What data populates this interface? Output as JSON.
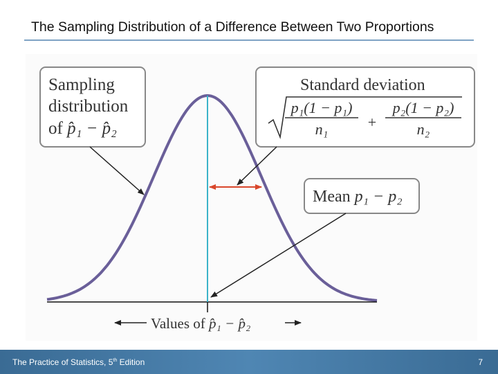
{
  "header": {
    "title": "The Sampling Distribution of a Difference Between Two Proportions"
  },
  "diagram": {
    "sampling_box": {
      "lines": [
        "Sampling",
        "distribution",
        "of"
      ],
      "expression": "p̂₁ − p̂₂"
    },
    "sd_box": {
      "title": "Standard deviation",
      "numerator_1": "p₁(1 − p₁)",
      "denominator_1": "n₁",
      "operator": "+",
      "numerator_2": "p₂(1 − p₂)",
      "denominator_2": "n₂"
    },
    "mean_box": {
      "label": "Mean",
      "expression": "p₁ − p₂"
    },
    "axis_label": {
      "label": "Values",
      "of": "of",
      "expression": "p̂₁ − p̂₂"
    }
  },
  "footer": {
    "source": "The Practice of Statistics, 5",
    "superscript": "th",
    "edition": "Edition",
    "page": "7"
  }
}
